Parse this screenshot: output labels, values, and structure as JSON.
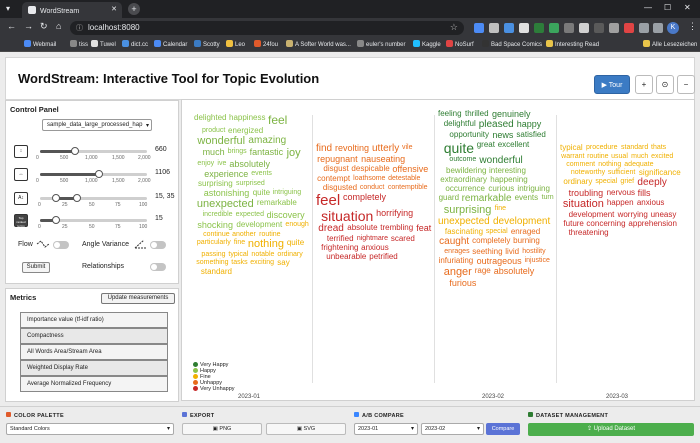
{
  "browser": {
    "tab_title": "WordStream",
    "url": "localhost:8080",
    "profile_initial": "K",
    "bookmarks": [
      "Webmail",
      "tiss",
      "Tuwel",
      "dict.cc",
      "Calendar",
      "Scotty",
      "Leo",
      "24fou",
      "A Softer World was...",
      "euler's number",
      "Kaggle",
      "NoSurf",
      "Bad Space Comics",
      "Interesting Read",
      "Alle Lesezeichen"
    ]
  },
  "header": {
    "title": "WordStream: Interactive Tool for Topic Evolution",
    "tour_label": "▶ Tour",
    "zoom_in": "+",
    "reset": "⊙",
    "zoom_out": "−"
  },
  "control_panel": {
    "title": "Control Panel",
    "dataset": "sample_data_large_processed_hap",
    "sliders": [
      {
        "name": "height",
        "icon_label": "↕",
        "value_label": "660",
        "ticks": [
          "0",
          "500",
          "1,000",
          "1,500",
          "2,000"
        ],
        "fraction": 0.33
      },
      {
        "name": "width",
        "icon_label": "↔",
        "value_label": "1106",
        "ticks": [
          "0",
          "500",
          "1,000",
          "1,500",
          "2,000"
        ],
        "fraction": 0.55
      },
      {
        "name": "font-size",
        "icon_label": "A↕",
        "value_label": "15, 35",
        "ticks": [
          "0",
          "25",
          "50",
          "75",
          "100"
        ],
        "fraction_low": 0.15,
        "fraction_high": 0.35
      },
      {
        "name": "top-ranked-terms",
        "icon_label": "Top ranked terms",
        "value_label": "15",
        "ticks": [
          "0",
          "25",
          "50",
          "75",
          "100"
        ],
        "fraction": 0.15
      }
    ],
    "flow_label": "Flow",
    "angle_variance_label": "Angle Variance",
    "relationships_label": "Relationships",
    "submit_label": "Submit"
  },
  "metrics": {
    "title": "Metrics",
    "update_label": "Update measurements",
    "rows": [
      "Importance value (tf-idf ratio)",
      "Compactness",
      "All Words Area/Stream Area",
      "Weighted Display Rate",
      "Average Normalized Frequency"
    ]
  },
  "stream": {
    "legend": [
      {
        "label": "Very Happy",
        "color": "#2e7d32"
      },
      {
        "label": "Happy",
        "color": "#8bc34a"
      },
      {
        "label": "Fine",
        "color": "#f0b000"
      },
      {
        "label": "Unhappy",
        "color": "#e86b1c"
      },
      {
        "label": "Very Unhappy",
        "color": "#c62828"
      }
    ],
    "x_ticks": [
      "2023-01",
      "2023-02",
      "2023-03"
    ],
    "columns": [
      {
        "name": "col1",
        "words": [
          {
            "t": "delighted",
            "c": "#8bc34a",
            "s": 8
          },
          {
            "t": "happiness",
            "c": "#8bc34a",
            "s": 8
          },
          {
            "t": "feel",
            "c": "#7cb342",
            "s": 12
          },
          {
            "t": "product",
            "c": "#8bc34a",
            "s": 7
          },
          {
            "t": "energized",
            "c": "#8bc34a",
            "s": 8
          },
          {
            "t": "wonderful",
            "c": "#7cb342",
            "s": 11
          },
          {
            "t": "amazing",
            "c": "#7cb342",
            "s": 10
          },
          {
            "t": "much",
            "c": "#7cb342",
            "s": 9
          },
          {
            "t": "brings",
            "c": "#8bc34a",
            "s": 7
          },
          {
            "t": "fantastic",
            "c": "#7cb342",
            "s": 9
          },
          {
            "t": "joy",
            "c": "#7cb342",
            "s": 11
          },
          {
            "t": "enjoy",
            "c": "#8bc34a",
            "s": 7
          },
          {
            "t": "ive",
            "c": "#8bc34a",
            "s": 7
          },
          {
            "t": "absolutely",
            "c": "#7cb342",
            "s": 9
          },
          {
            "t": "experience",
            "c": "#7cb342",
            "s": 9
          },
          {
            "t": "events",
            "c": "#8bc34a",
            "s": 7
          },
          {
            "t": "surprising",
            "c": "#8bc34a",
            "s": 8
          },
          {
            "t": "surprised",
            "c": "#8bc34a",
            "s": 7
          },
          {
            "t": "astonishing",
            "c": "#8bc34a",
            "s": 9
          },
          {
            "t": "quite",
            "c": "#8bc34a",
            "s": 8
          },
          {
            "t": "intriguing",
            "c": "#8bc34a",
            "s": 7
          },
          {
            "t": "unexpected",
            "c": "#7cb342",
            "s": 11
          },
          {
            "t": "remarkable",
            "c": "#8bc34a",
            "s": 8
          },
          {
            "t": "incredible",
            "c": "#8bc34a",
            "s": 7
          },
          {
            "t": "expected",
            "c": "#8bc34a",
            "s": 7
          },
          {
            "t": "discovery",
            "c": "#8bc34a",
            "s": 9
          },
          {
            "t": "shocking",
            "c": "#8bc34a",
            "s": 9
          },
          {
            "t": "development",
            "c": "#8bc34a",
            "s": 8
          },
          {
            "t": "enough",
            "c": "#f0b000",
            "s": 7
          },
          {
            "t": "continue",
            "c": "#f0b000",
            "s": 7
          },
          {
            "t": "another",
            "c": "#f0b000",
            "s": 7
          },
          {
            "t": "routine",
            "c": "#f0b000",
            "s": 7
          },
          {
            "t": "particularly",
            "c": "#f0b000",
            "s": 7
          },
          {
            "t": "fine",
            "c": "#f0b000",
            "s": 7
          },
          {
            "t": "nothing",
            "c": "#f0b000",
            "s": 11
          },
          {
            "t": "quite",
            "c": "#f0b000",
            "s": 8
          },
          {
            "t": "passing",
            "c": "#f0b000",
            "s": 7
          },
          {
            "t": "typical",
            "c": "#f0b000",
            "s": 7
          },
          {
            "t": "notable",
            "c": "#f0b000",
            "s": 7
          },
          {
            "t": "ordinary",
            "c": "#f0b000",
            "s": 7
          },
          {
            "t": "something",
            "c": "#f0b000",
            "s": 7
          },
          {
            "t": "tasks",
            "c": "#f0b000",
            "s": 7
          },
          {
            "t": "exciting",
            "c": "#f0b000",
            "s": 7
          },
          {
            "t": "say",
            "c": "#f0b000",
            "s": 8
          },
          {
            "t": "standard",
            "c": "#f0b000",
            "s": 8
          }
        ]
      },
      {
        "name": "col2",
        "words": [
          {
            "t": "find",
            "c": "#e86b1c",
            "s": 10
          },
          {
            "t": "revolting",
            "c": "#e86b1c",
            "s": 9
          },
          {
            "t": "utterly",
            "c": "#e86b1c",
            "s": 10
          },
          {
            "t": "vile",
            "c": "#e86b1c",
            "s": 7
          },
          {
            "t": "repugnant",
            "c": "#e86b1c",
            "s": 9
          },
          {
            "t": "nauseating",
            "c": "#e86b1c",
            "s": 9
          },
          {
            "t": "disgust",
            "c": "#e86b1c",
            "s": 8
          },
          {
            "t": "despicable",
            "c": "#e86b1c",
            "s": 8
          },
          {
            "t": "offensive",
            "c": "#e86b1c",
            "s": 9
          },
          {
            "t": "contempt",
            "c": "#e86b1c",
            "s": 8
          },
          {
            "t": "loathsome",
            "c": "#e86b1c",
            "s": 7
          },
          {
            "t": "detestable",
            "c": "#e86b1c",
            "s": 7
          },
          {
            "t": "disgusted",
            "c": "#e86b1c",
            "s": 8
          },
          {
            "t": "conduct",
            "c": "#e86b1c",
            "s": 7
          },
          {
            "t": "contemptible",
            "c": "#e86b1c",
            "s": 7
          },
          {
            "t": "feel",
            "c": "#c62828",
            "s": 15
          },
          {
            "t": "completely",
            "c": "#c62828",
            "s": 9
          },
          {
            "t": "situation",
            "c": "#c62828",
            "s": 14
          },
          {
            "t": "horrifying",
            "c": "#c62828",
            "s": 9
          },
          {
            "t": "dread",
            "c": "#c62828",
            "s": 10
          },
          {
            "t": "absolute",
            "c": "#c62828",
            "s": 8
          },
          {
            "t": "trembling",
            "c": "#c62828",
            "s": 8
          },
          {
            "t": "feat",
            "c": "#c62828",
            "s": 9
          },
          {
            "t": "terrified",
            "c": "#c62828",
            "s": 8
          },
          {
            "t": "nightmare",
            "c": "#c62828",
            "s": 7
          },
          {
            "t": "scared",
            "c": "#c62828",
            "s": 8
          },
          {
            "t": "frightening",
            "c": "#c62828",
            "s": 8
          },
          {
            "t": "anxious",
            "c": "#c62828",
            "s": 8
          },
          {
            "t": "unbearable",
            "c": "#c62828",
            "s": 8
          },
          {
            "t": "petrified",
            "c": "#c62828",
            "s": 8
          }
        ]
      },
      {
        "name": "col3",
        "words": [
          {
            "t": "feeling",
            "c": "#2e7d32",
            "s": 8
          },
          {
            "t": "thrilled",
            "c": "#2e7d32",
            "s": 8
          },
          {
            "t": "genuinely",
            "c": "#2e7d32",
            "s": 9
          },
          {
            "t": "delightful",
            "c": "#2e7d32",
            "s": 8
          },
          {
            "t": "pleased",
            "c": "#2e7d32",
            "s": 10
          },
          {
            "t": "happy",
            "c": "#2e7d32",
            "s": 9
          },
          {
            "t": "opportunity",
            "c": "#2e7d32",
            "s": 8
          },
          {
            "t": "news",
            "c": "#2e7d32",
            "s": 9
          },
          {
            "t": "satisfied",
            "c": "#2e7d32",
            "s": 8
          },
          {
            "t": "quite",
            "c": "#2e7d32",
            "s": 14
          },
          {
            "t": "great",
            "c": "#2e7d32",
            "s": 8
          },
          {
            "t": "excellent",
            "c": "#2e7d32",
            "s": 8
          },
          {
            "t": "outcome",
            "c": "#2e7d32",
            "s": 7
          },
          {
            "t": "wonderful",
            "c": "#2e7d32",
            "s": 10
          },
          {
            "t": "bewildering",
            "c": "#7cb342",
            "s": 8
          },
          {
            "t": "interesting",
            "c": "#7cb342",
            "s": 8
          },
          {
            "t": "extraordinary",
            "c": "#7cb342",
            "s": 8
          },
          {
            "t": "happening",
            "c": "#7cb342",
            "s": 8
          },
          {
            "t": "occurrence",
            "c": "#7cb342",
            "s": 8
          },
          {
            "t": "curious",
            "c": "#7cb342",
            "s": 8
          },
          {
            "t": "intriguing",
            "c": "#7cb342",
            "s": 8
          },
          {
            "t": "guard",
            "c": "#7cb342",
            "s": 8
          },
          {
            "t": "remarkable",
            "c": "#7cb342",
            "s": 10
          },
          {
            "t": "events",
            "c": "#7cb342",
            "s": 8
          },
          {
            "t": "turn",
            "c": "#7cb342",
            "s": 7
          },
          {
            "t": "surprising",
            "c": "#7cb342",
            "s": 11
          },
          {
            "t": "fine",
            "c": "#f0b000",
            "s": 7
          },
          {
            "t": "unexpected",
            "c": "#f0b000",
            "s": 10
          },
          {
            "t": "development",
            "c": "#f0b000",
            "s": 10
          },
          {
            "t": "fascinating",
            "c": "#f0b000",
            "s": 8
          },
          {
            "t": "special",
            "c": "#f0b000",
            "s": 7
          },
          {
            "t": "enraged",
            "c": "#e86b1c",
            "s": 8
          },
          {
            "t": "caught",
            "c": "#e86b1c",
            "s": 10
          },
          {
            "t": "completely",
            "c": "#e86b1c",
            "s": 8
          },
          {
            "t": "burning",
            "c": "#e86b1c",
            "s": 8
          },
          {
            "t": "enrages",
            "c": "#e86b1c",
            "s": 7
          },
          {
            "t": "seething",
            "c": "#e86b1c",
            "s": 8
          },
          {
            "t": "livid",
            "c": "#e86b1c",
            "s": 8
          },
          {
            "t": "hostility",
            "c": "#e86b1c",
            "s": 7
          },
          {
            "t": "infuriating",
            "c": "#e86b1c",
            "s": 8
          },
          {
            "t": "outrageous",
            "c": "#e86b1c",
            "s": 9
          },
          {
            "t": "injustice",
            "c": "#e86b1c",
            "s": 7
          },
          {
            "t": "anger",
            "c": "#e86b1c",
            "s": 11
          },
          {
            "t": "rage",
            "c": "#e86b1c",
            "s": 8
          },
          {
            "t": "absolutely",
            "c": "#e86b1c",
            "s": 9
          },
          {
            "t": "furious",
            "c": "#e86b1c",
            "s": 9
          }
        ]
      },
      {
        "name": "col4",
        "words": [
          {
            "t": "typical",
            "c": "#f0b000",
            "s": 8
          },
          {
            "t": "procedure",
            "c": "#f0b000",
            "s": 7
          },
          {
            "t": "standard",
            "c": "#f0b000",
            "s": 7
          },
          {
            "t": "thats",
            "c": "#f0b000",
            "s": 7
          },
          {
            "t": "warrant",
            "c": "#f0b000",
            "s": 7
          },
          {
            "t": "routine",
            "c": "#f0b000",
            "s": 7
          },
          {
            "t": "usual",
            "c": "#f0b000",
            "s": 7
          },
          {
            "t": "much",
            "c": "#f0b000",
            "s": 7
          },
          {
            "t": "excited",
            "c": "#f0b000",
            "s": 7
          },
          {
            "t": "comment",
            "c": "#f0b000",
            "s": 7
          },
          {
            "t": "nothing",
            "c": "#f0b000",
            "s": 7
          },
          {
            "t": "adequate",
            "c": "#f0b000",
            "s": 7
          },
          {
            "t": "noteworthy",
            "c": "#f0b000",
            "s": 7
          },
          {
            "t": "sufficient",
            "c": "#f0b000",
            "s": 7
          },
          {
            "t": "significance",
            "c": "#f0b000",
            "s": 8
          },
          {
            "t": "ordinary",
            "c": "#f0b000",
            "s": 8
          },
          {
            "t": "special",
            "c": "#f0b000",
            "s": 7
          },
          {
            "t": "grief",
            "c": "#f0b000",
            "s": 7
          },
          {
            "t": "deeply",
            "c": "#c62828",
            "s": 10
          },
          {
            "t": "troubling",
            "c": "#c62828",
            "s": 9
          },
          {
            "t": "nervous",
            "c": "#c62828",
            "s": 8
          },
          {
            "t": "fills",
            "c": "#c62828",
            "s": 9
          },
          {
            "t": "situation",
            "c": "#c62828",
            "s": 11
          },
          {
            "t": "happen",
            "c": "#c62828",
            "s": 8
          },
          {
            "t": "anxious",
            "c": "#c62828",
            "s": 8
          },
          {
            "t": "development",
            "c": "#c62828",
            "s": 8
          },
          {
            "t": "worrying",
            "c": "#c62828",
            "s": 8
          },
          {
            "t": "uneasy",
            "c": "#c62828",
            "s": 8
          },
          {
            "t": "future",
            "c": "#c62828",
            "s": 8
          },
          {
            "t": "concerning",
            "c": "#c62828",
            "s": 8
          },
          {
            "t": "apprehension",
            "c": "#c62828",
            "s": 8
          },
          {
            "t": "threatening",
            "c": "#c62828",
            "s": 8
          }
        ]
      }
    ]
  },
  "bottom": {
    "color_palette_title": "COLOR PALETTE",
    "palette_value": "Standard Colors",
    "export_title": "EXPORT",
    "png_label": "PNG",
    "svg_label": "SVG",
    "ab_title": "A/B COMPARE",
    "ab_a": "2023-01",
    "ab_b": "2023-02",
    "compare_label": "Compare",
    "dataset_title": "DATASET MANAGEMENT",
    "upload_label": "Upload Dataset",
    "colors": {
      "palette": "#e05a2b",
      "export": "#5b73d6",
      "ab": "#3a86ff",
      "dataset": "#2e7d32"
    }
  }
}
